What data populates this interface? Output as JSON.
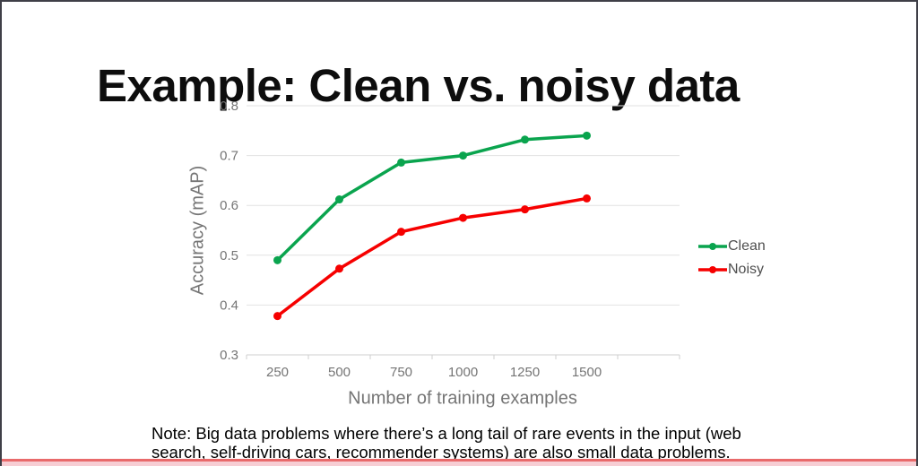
{
  "slide": {
    "title": "Example: Clean vs. noisy data",
    "note": {
      "line1": "Note: Big data problems where there’s a long tail of rare events in the input (web",
      "line2": "search, self-driving cars, recommender systems) are also small data problems."
    }
  },
  "chart_data": {
    "type": "line",
    "title": "",
    "xlabel": "Number of training examples",
    "ylabel": "Accuracy (mAP)",
    "categories": [
      250,
      500,
      750,
      1000,
      1250,
      1500
    ],
    "x_tick_labels": [
      "250",
      "500",
      "750",
      "1000",
      "1250",
      "1500"
    ],
    "y_ticks": [
      0.8,
      0.7,
      0.6,
      0.5,
      0.4,
      0.3
    ],
    "ylim": [
      0.3,
      0.8
    ],
    "grid": "horizontal",
    "legend_position": "right",
    "series": [
      {
        "name": "Clean",
        "color": "#0aa44e",
        "values": [
          0.49,
          0.612,
          0.686,
          0.7,
          0.732,
          0.74
        ]
      },
      {
        "name": "Noisy",
        "color": "#f60000",
        "values": [
          0.378,
          0.473,
          0.547,
          0.575,
          0.592,
          0.614
        ]
      }
    ],
    "axis_color": "#757575",
    "grid_color": "#e2e2e2",
    "baseline_color": "#cfcfcf",
    "legend_text_color": "#4f4f4f"
  },
  "frame": {
    "border_color": "#3f3f47",
    "next_slide_accent": "#e96a6b",
    "next_slide_fill": "#f7ced4"
  }
}
